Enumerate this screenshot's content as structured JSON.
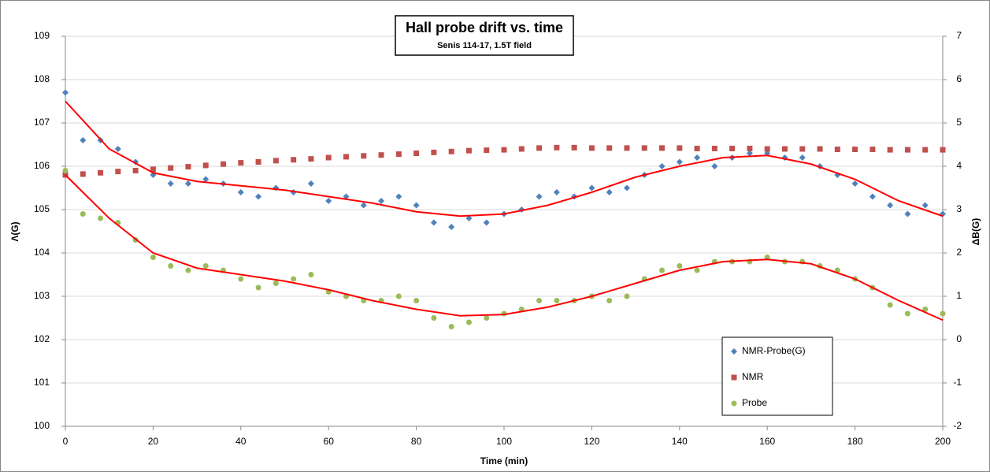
{
  "chart_data": {
    "type": "scatter",
    "title": "Hall probe drift vs. time",
    "subtitle": "Senis 114-17, 1.5T field",
    "x_label": "Time (min)",
    "y_label": "Λ(G)",
    "y2_label": "ΔB(G)",
    "xlim": [
      0,
      200
    ],
    "xticks": [
      0,
      20,
      40,
      60,
      80,
      100,
      120,
      140,
      160,
      180,
      200
    ],
    "ylim": [
      100,
      109
    ],
    "yticks": [
      100,
      101,
      102,
      103,
      104,
      105,
      106,
      107,
      108,
      109
    ],
    "y2lim": [
      -2,
      7
    ],
    "y2ticks": [
      -2,
      -1,
      0,
      1,
      2,
      3,
      4,
      5,
      6,
      7
    ],
    "grid": true,
    "legend": "lower right",
    "x": [
      0,
      4,
      8,
      12,
      16,
      20,
      24,
      28,
      32,
      36,
      40,
      44,
      48,
      52,
      56,
      60,
      64,
      68,
      72,
      76,
      80,
      84,
      88,
      92,
      96,
      100,
      104,
      108,
      112,
      116,
      120,
      124,
      128,
      132,
      136,
      140,
      144,
      148,
      152,
      156,
      160,
      164,
      168,
      172,
      176,
      180,
      184,
      188,
      192,
      196,
      200
    ],
    "series": [
      {
        "name": "NMR-Probe(G)",
        "color": "#4f81bd",
        "marker": "diamond",
        "values": [
          107.7,
          106.6,
          106.6,
          106.4,
          106.1,
          105.8,
          105.6,
          105.6,
          105.7,
          105.6,
          105.4,
          105.3,
          105.5,
          105.4,
          105.6,
          105.2,
          105.3,
          105.1,
          105.2,
          105.3,
          105.1,
          104.7,
          104.6,
          104.8,
          104.7,
          104.9,
          105.0,
          105.3,
          105.4,
          105.3,
          105.5,
          105.4,
          105.5,
          105.8,
          106.0,
          106.1,
          106.2,
          106.0,
          106.2,
          106.3,
          106.3,
          106.2,
          106.2,
          106.0,
          105.8,
          105.6,
          105.3,
          105.1,
          104.9,
          105.1,
          104.9
        ]
      },
      {
        "name": "NMR",
        "color": "#c0504d",
        "marker": "square",
        "values": [
          105.8,
          105.82,
          105.85,
          105.88,
          105.9,
          105.93,
          105.96,
          105.99,
          106.02,
          106.05,
          106.08,
          106.1,
          106.13,
          106.15,
          106.17,
          106.2,
          106.22,
          106.24,
          106.26,
          106.28,
          106.3,
          106.32,
          106.34,
          106.36,
          106.37,
          106.38,
          106.4,
          106.42,
          106.43,
          106.43,
          106.42,
          106.42,
          106.42,
          106.42,
          106.42,
          106.42,
          106.41,
          106.41,
          106.41,
          106.41,
          106.4,
          106.4,
          106.4,
          106.4,
          106.39,
          106.39,
          106.39,
          106.38,
          106.38,
          106.38,
          106.38
        ]
      },
      {
        "name": "Probe",
        "color": "#9bbb59",
        "marker": "circle",
        "axis": "y2",
        "values": [
          3.9,
          2.9,
          2.8,
          2.7,
          2.3,
          1.9,
          1.7,
          1.6,
          1.7,
          1.6,
          1.4,
          1.2,
          1.3,
          1.4,
          1.5,
          1.1,
          1.0,
          0.9,
          0.9,
          1.0,
          0.9,
          0.5,
          0.3,
          0.4,
          0.5,
          0.6,
          0.7,
          0.9,
          0.9,
          0.9,
          1.0,
          0.9,
          1.0,
          1.4,
          1.6,
          1.7,
          1.6,
          1.8,
          1.8,
          1.8,
          1.9,
          1.8,
          1.8,
          1.7,
          1.6,
          1.4,
          1.2,
          0.8,
          0.6,
          0.7,
          0.6
        ]
      }
    ],
    "trendlines": [
      {
        "color": "#ff0000",
        "x": [
          0,
          10,
          20,
          30,
          40,
          50,
          60,
          70,
          80,
          90,
          100,
          110,
          120,
          130,
          140,
          150,
          160,
          170,
          180,
          190,
          200
        ],
        "values": [
          107.5,
          106.4,
          105.85,
          105.65,
          105.55,
          105.45,
          105.3,
          105.15,
          104.95,
          104.85,
          104.9,
          105.1,
          105.4,
          105.75,
          106.0,
          106.2,
          106.25,
          106.05,
          105.7,
          105.2,
          104.85
        ]
      },
      {
        "color": "#ff0000",
        "axis": "y2",
        "x": [
          0,
          10,
          20,
          30,
          40,
          50,
          60,
          70,
          80,
          90,
          100,
          110,
          120,
          130,
          140,
          150,
          160,
          170,
          180,
          190,
          200
        ],
        "values": [
          3.8,
          2.8,
          2.0,
          1.65,
          1.5,
          1.35,
          1.15,
          0.9,
          0.7,
          0.55,
          0.58,
          0.75,
          1.0,
          1.3,
          1.6,
          1.8,
          1.85,
          1.75,
          1.4,
          0.9,
          0.45
        ]
      }
    ]
  }
}
